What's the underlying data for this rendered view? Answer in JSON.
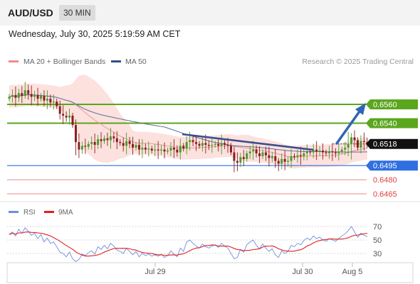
{
  "header": {
    "pair": "AUD/USD",
    "timeframe": "30 MIN"
  },
  "datetime": "Wednesday, July 30, 2025 5:19:59 AM CET",
  "legend": {
    "ma20": "MA 20 + Bollinger Bands",
    "ma50": "MA 50",
    "copyright": "Research © 2025 Trading Central"
  },
  "rsi_legend": {
    "rsi": "RSI",
    "ma9": "9MA"
  },
  "colors": {
    "green": "#5aa61d",
    "blue": "#2f6fe0",
    "red": "#e06060",
    "candle_up": "#4e9a2a",
    "candle_down": "#8a1f1f",
    "band": "#fbd9d6",
    "ma20": "#e99a9a",
    "ma50": "#5a6f98",
    "rsi": "#6b8fe0",
    "rsi_ma": "#e02020",
    "arrow": "#2f64b8"
  },
  "chart_data": [
    {
      "type": "candlestick",
      "y_axis_labels": [
        {
          "value": 0.656,
          "label": "0.6560",
          "style": "green"
        },
        {
          "value": 0.654,
          "label": "0.6540",
          "style": "green"
        },
        {
          "value": 0.6518,
          "label": "0.6518",
          "style": "current"
        },
        {
          "value": 0.6495,
          "label": "0.6495",
          "style": "blue"
        },
        {
          "value": 0.648,
          "label": "0.6480",
          "style": "red"
        },
        {
          "value": 0.6465,
          "label": "0.6465",
          "style": "red"
        }
      ],
      "x_ticks": [
        "Jul 29",
        "Jul 30",
        "Aug 5"
      ],
      "closes": [
        0.6568,
        0.657,
        0.6567,
        0.6572,
        0.6569,
        0.6575,
        0.6571,
        0.6568,
        0.657,
        0.6566,
        0.6569,
        0.6564,
        0.6566,
        0.6562,
        0.6563,
        0.6558,
        0.655,
        0.6548,
        0.6546,
        0.6548,
        0.6538,
        0.652,
        0.6512,
        0.6516,
        0.6515,
        0.6518,
        0.652,
        0.6517,
        0.6523,
        0.6521,
        0.6524,
        0.6522,
        0.6526,
        0.6524,
        0.652,
        0.6519,
        0.6516,
        0.6521,
        0.6518,
        0.6514,
        0.6517,
        0.6512,
        0.6514,
        0.6512,
        0.6513,
        0.6511,
        0.6512,
        0.6511,
        0.6512,
        0.651,
        0.6511,
        0.6514,
        0.6512,
        0.6509,
        0.6516,
        0.6513,
        0.652,
        0.6522,
        0.652,
        0.6518,
        0.6516,
        0.6519,
        0.6517,
        0.6516,
        0.6517,
        0.6518,
        0.6516,
        0.6519,
        0.6517,
        0.6516,
        0.6509,
        0.65,
        0.6498,
        0.6504,
        0.6502,
        0.6508,
        0.651,
        0.6512,
        0.6508,
        0.6505,
        0.6509,
        0.6506,
        0.6503,
        0.6505,
        0.65,
        0.6497,
        0.6502,
        0.6499,
        0.65,
        0.6505,
        0.6504,
        0.6506,
        0.6505,
        0.6508,
        0.651,
        0.6509,
        0.6512,
        0.651,
        0.6511,
        0.6509,
        0.6508,
        0.651,
        0.6509,
        0.6508,
        0.651,
        0.6512,
        0.6514,
        0.6518,
        0.6525,
        0.6522,
        0.6514,
        0.6521,
        0.652,
        0.6518
      ]
    },
    {
      "type": "line",
      "title": "RSI",
      "y_ticks": [
        70,
        50,
        30
      ],
      "ylim": [
        20,
        80
      ],
      "series": [
        {
          "name": "RSI",
          "values": [
            58,
            62,
            56,
            66,
            60,
            68,
            63,
            57,
            60,
            52,
            58,
            47,
            53,
            45,
            47,
            40,
            32,
            30,
            25,
            32,
            22,
            18,
            21,
            29,
            27,
            31,
            34,
            29,
            40,
            36,
            42,
            37,
            45,
            41,
            35,
            33,
            30,
            38,
            33,
            28,
            33,
            25,
            30,
            27,
            29,
            26,
            28,
            26,
            29,
            24,
            27,
            34,
            29,
            25,
            38,
            33,
            47,
            50,
            45,
            41,
            38,
            44,
            40,
            38,
            41,
            43,
            39,
            45,
            41,
            38,
            30,
            22,
            24,
            36,
            32,
            43,
            47,
            50,
            42,
            37,
            44,
            38,
            33,
            37,
            28,
            24,
            34,
            30,
            33,
            42,
            40,
            45,
            43,
            49,
            53,
            50,
            56,
            52,
            54,
            50,
            48,
            52,
            50,
            48,
            52,
            56,
            59,
            64,
            70,
            62,
            54,
            60,
            57,
            55
          ]
        },
        {
          "name": "9MA",
          "values": []
        }
      ]
    }
  ]
}
